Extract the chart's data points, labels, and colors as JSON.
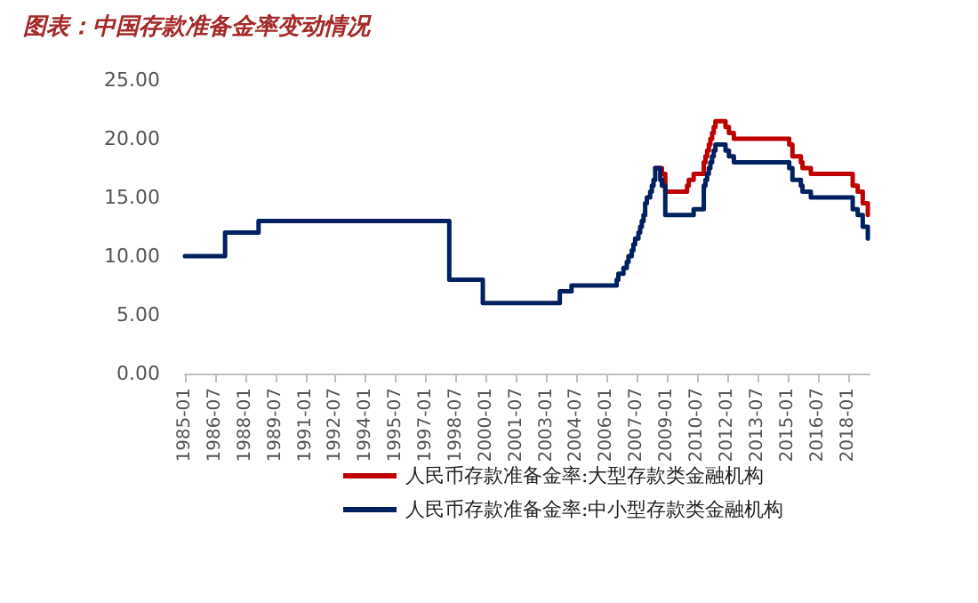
{
  "chart_data": {
    "type": "step",
    "title": "图表：中国存款准备金率变动情况",
    "xlim": [
      "1985-01",
      "2019-02"
    ],
    "xticks": [
      "1985-01",
      "1986-07",
      "1988-01",
      "1989-07",
      "1991-01",
      "1992-07",
      "1994-01",
      "1995-07",
      "1997-01",
      "1998-07",
      "2000-01",
      "2001-07",
      "2003-01",
      "2004-07",
      "2006-01",
      "2007-07",
      "2009-01",
      "2010-07",
      "2012-01",
      "2013-07",
      "2015-01",
      "2016-07",
      "2018-01"
    ],
    "ylim": [
      0,
      25
    ],
    "yticks": [
      {
        "value": 0,
        "label": "0.00"
      },
      {
        "value": 5,
        "label": "5.00"
      },
      {
        "value": 10,
        "label": "10.00"
      },
      {
        "value": 15,
        "label": "15.00"
      },
      {
        "value": 20,
        "label": "20.00"
      },
      {
        "value": 25,
        "label": "25.00"
      }
    ],
    "grid": false,
    "legend": "bottom",
    "marker": "none",
    "line_style": "solid",
    "series": [
      {
        "name": "人民币存款准备金率:大型存款类金融机构",
        "color": "#c00000",
        "x": [
          "2008-06",
          "2008-10",
          "2008-12",
          "2010-01",
          "2010-02",
          "2010-05",
          "2010-11",
          "2010-12",
          "2011-01",
          "2011-02",
          "2011-03",
          "2011-04",
          "2011-05",
          "2011-06",
          "2011-12",
          "2012-02",
          "2012-05",
          "2015-02",
          "2015-04",
          "2015-09",
          "2015-10",
          "2016-03",
          "2018-04",
          "2018-07",
          "2018-10",
          "2019-01"
        ],
        "values": [
          17.5,
          17,
          15.5,
          16,
          16.5,
          17,
          18,
          18.5,
          19,
          19.5,
          20,
          20.5,
          21,
          21.5,
          21,
          20.5,
          20,
          19.5,
          18.5,
          18,
          17.5,
          17,
          16,
          15.5,
          14.5,
          13.5
        ]
      },
      {
        "name": "人民币存款准备金率:中小型存款类金融机构",
        "color": "#002060",
        "x": [
          "1985-01",
          "1987-01",
          "1988-09",
          "1998-03",
          "1999-11",
          "2003-09",
          "2004-04",
          "2006-07",
          "2006-08",
          "2006-11",
          "2007-01",
          "2007-02",
          "2007-04",
          "2007-05",
          "2007-06",
          "2007-08",
          "2007-09",
          "2007-10",
          "2007-11",
          "2007-12",
          "2008-01",
          "2008-03",
          "2008-04",
          "2008-05",
          "2008-06",
          "2008-09",
          "2008-10",
          "2008-12",
          "2010-05",
          "2010-11",
          "2010-12",
          "2011-01",
          "2011-02",
          "2011-03",
          "2011-04",
          "2011-05",
          "2011-06",
          "2011-12",
          "2012-02",
          "2012-05",
          "2015-02",
          "2015-04",
          "2015-09",
          "2015-10",
          "2016-03",
          "2018-04",
          "2018-07",
          "2018-10",
          "2019-01"
        ],
        "values": [
          10,
          12,
          13,
          8,
          6,
          7,
          7.5,
          8,
          8.5,
          9,
          9.5,
          10,
          10.5,
          11,
          11.5,
          12,
          12.5,
          13,
          13.5,
          14.5,
          15,
          15.5,
          16,
          16.5,
          17.5,
          16.5,
          16,
          13.5,
          14,
          16,
          16.5,
          17,
          17.5,
          18,
          18.5,
          19,
          19.5,
          19,
          18.5,
          18,
          17.5,
          16.5,
          16,
          15.5,
          15,
          14,
          13.5,
          12.5,
          11.5
        ]
      }
    ]
  }
}
